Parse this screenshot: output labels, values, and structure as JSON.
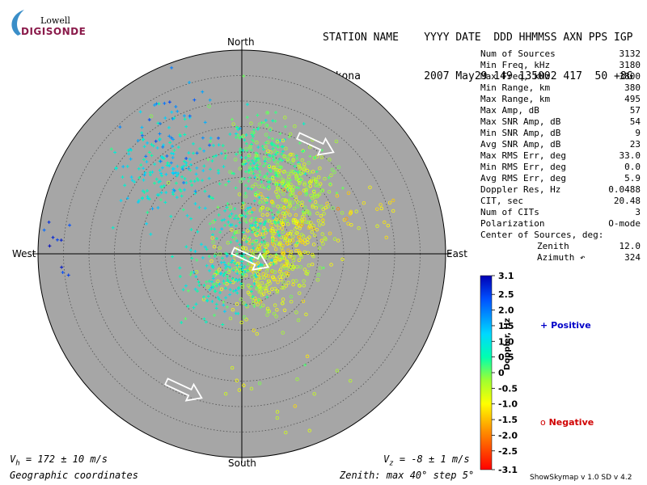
{
  "logo": {
    "line1": "Lowell",
    "line2": "DIGISONDE"
  },
  "header": {
    "row1": "STATION NAME    YYYY DATE  DDD HHMMSS AXN PPS IGP",
    "row2": "Gakona          2007 May29 149 135002 417  50 +8G"
  },
  "stats": [
    {
      "label": "Num of Sources",
      "value": "3132"
    },
    {
      "label": "Min Freq, kHz",
      "value": "3180"
    },
    {
      "label": "Max Freq, kHz",
      "value": "3800"
    },
    {
      "label": "Min Range, km",
      "value": "380"
    },
    {
      "label": "Max Range, km",
      "value": "495"
    },
    {
      "label": "Max Amp, dB",
      "value": "57"
    },
    {
      "label": "Max SNR Amp, dB",
      "value": "54"
    },
    {
      "label": "Min SNR Amp, dB",
      "value": "9"
    },
    {
      "label": "Avg SNR Amp, dB",
      "value": "23"
    },
    {
      "label": "Max RMS Err, deg",
      "value": "33.0"
    },
    {
      "label": "Min RMS Err, deg",
      "value": "0.0"
    },
    {
      "label": "Avg RMS Err, deg",
      "value": "5.9"
    },
    {
      "label": "Doppler Res, Hz",
      "value": "0.0488"
    },
    {
      "label": "CIT, sec",
      "value": "20.48"
    },
    {
      "label": "Num of CITs",
      "value": "3"
    },
    {
      "label": "Polarization",
      "value": "O-mode"
    },
    {
      "label": "Center of Sources, deg:",
      "value": ""
    },
    {
      "label": "Zenith",
      "value": "12.0"
    },
    {
      "label": "Azimuth ↶",
      "value": "324"
    }
  ],
  "compass": {
    "north": "North",
    "south": "South",
    "east": "East",
    "west": "West"
  },
  "footer": {
    "vh_sym": "V",
    "vh_sub": "h",
    "vh_text": " = 172 ± 10 m/s",
    "vz_sym": "V",
    "vz_sub": "z",
    "vz_text": " = -8 ± 1 m/s",
    "coords": "Geographic coordinates",
    "zenith": "Zenith: max 40°  step 5°",
    "version": "ShowSkymap v 1.0   SD v 4.2"
  },
  "legend": {
    "positive": "Positive",
    "negative": "Negative",
    "positive_symbol": "+",
    "negative_symbol": "o"
  },
  "colors": {
    "disk": "#a6a6a6",
    "positive": "#0000c8",
    "negative": "#d00000"
  },
  "colorbar": {
    "title": "Doppler, Hz",
    "min": -3.1,
    "max": 3.1,
    "ticks": [
      "3.1",
      "2.5",
      "2.0",
      "1.5",
      "1.0",
      "0.5",
      "0",
      "-0.5",
      "-1.0",
      "-1.5",
      "-2.0",
      "-2.5",
      "-3.1"
    ],
    "tick_values": [
      3.1,
      2.5,
      2.0,
      1.5,
      1.0,
      0.5,
      0,
      -0.5,
      -1.0,
      -1.5,
      -2.0,
      -2.5,
      -3.1
    ]
  },
  "chart_data": {
    "type": "scatter",
    "projection": "polar-skymap",
    "zenith_max_deg": 40,
    "zenith_step_deg": 5,
    "color_scale": {
      "min": -3.1,
      "max": 3.1,
      "units": "Hz"
    },
    "clusters": [
      {
        "zenith": 22,
        "azimuth": 318,
        "spread": 5,
        "count": 170,
        "doppler": 0.9,
        "doppler_spread": 0.35
      },
      {
        "zenith": 19,
        "azimuth": 8,
        "spread": 4,
        "count": 220,
        "doppler": 0.3,
        "doppler_spread": 0.35
      },
      {
        "zenith": 17,
        "azimuth": 38,
        "spread": 4,
        "count": 240,
        "doppler": -0.4,
        "doppler_spread": 0.35
      },
      {
        "zenith": 10,
        "azimuth": 68,
        "spread": 4,
        "count": 200,
        "doppler": -0.9,
        "doppler_spread": 0.35
      },
      {
        "zenith": 6,
        "azimuth": 130,
        "spread": 4,
        "count": 230,
        "doppler": -0.7,
        "doppler_spread": 0.4
      },
      {
        "zenith": 6,
        "azimuth": 215,
        "spread": 4,
        "count": 150,
        "doppler": 0.7,
        "doppler_spread": 0.35
      },
      {
        "zenith": 5,
        "azimuth": 10,
        "spread": 4,
        "count": 130,
        "doppler": 0.4,
        "doppler_spread": 0.35
      },
      {
        "zenith": 28,
        "azimuth": 330,
        "spread": 5,
        "count": 40,
        "doppler": 1.9,
        "doppler_spread": 0.3
      },
      {
        "zenith": 38,
        "azimuth": 272,
        "spread": 3,
        "count": 14,
        "doppler": 2.5,
        "doppler_spread": 0.2
      },
      {
        "zenith": 25,
        "azimuth": 70,
        "spread": 3,
        "count": 25,
        "doppler": -1.1,
        "doppler_spread": 0.3
      },
      {
        "zenith": 28,
        "azimuth": 165,
        "spread": 5,
        "count": 18,
        "doppler": -0.6,
        "doppler_spread": 0.4
      }
    ],
    "velocity_arrows": [
      {
        "zenith": 26,
        "azimuth": 34,
        "direction_deg": 115
      },
      {
        "zenith": 2,
        "azimuth": 120,
        "direction_deg": 115
      },
      {
        "zenith": 29,
        "azimuth": 203,
        "direction_deg": 115
      }
    ],
    "source_center": {
      "zenith": 12.0,
      "azimuth": 324
    }
  }
}
